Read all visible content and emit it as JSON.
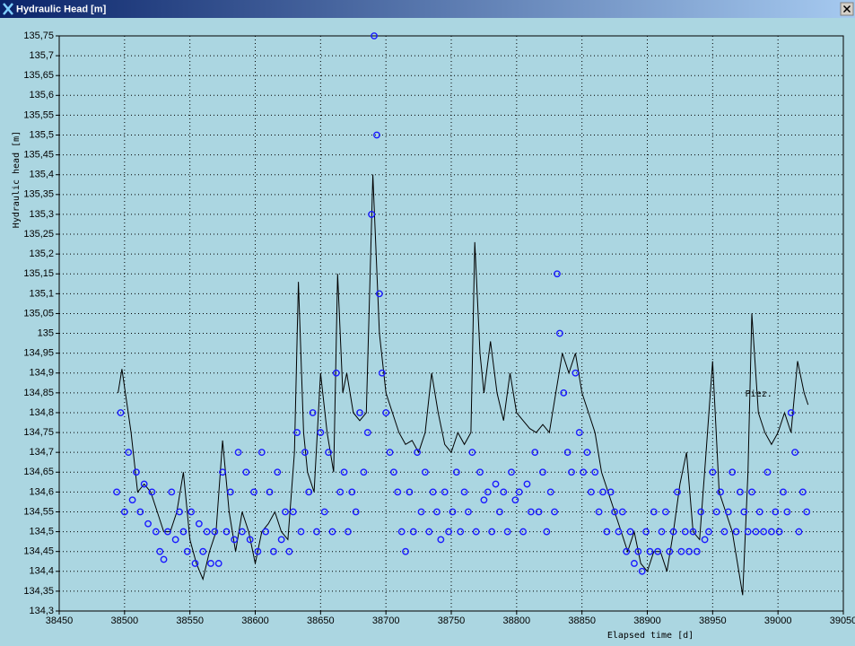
{
  "window": {
    "title": "Hydraulic Head [m]"
  },
  "chart_data": {
    "type": "line",
    "xlabel": "Elapsed time [d]",
    "ylabel": "Hydraulic head [m]",
    "xlim": [
      38450,
      39050
    ],
    "xticks": [
      38450,
      38500,
      38550,
      38600,
      38650,
      38700,
      38750,
      38800,
      38850,
      38900,
      38950,
      39000,
      39050
    ],
    "ylim": [
      134.3,
      135.75
    ],
    "yticks": [
      {
        "value": 134.3,
        "label": "134,3"
      },
      {
        "value": 134.35,
        "label": "134,35"
      },
      {
        "value": 134.4,
        "label": "134,4"
      },
      {
        "value": 134.45,
        "label": "134,45"
      },
      {
        "value": 134.5,
        "label": "134,5"
      },
      {
        "value": 134.55,
        "label": "134,55"
      },
      {
        "value": 134.6,
        "label": "134,6"
      },
      {
        "value": 134.65,
        "label": "134,65"
      },
      {
        "value": 134.7,
        "label": "134,7"
      },
      {
        "value": 134.75,
        "label": "134,75"
      },
      {
        "value": 134.8,
        "label": "134,8"
      },
      {
        "value": 134.85,
        "label": "134,85"
      },
      {
        "value": 134.9,
        "label": "134,9"
      },
      {
        "value": 134.95,
        "label": "134,95"
      },
      135,
      {
        "value": 135.05,
        "label": "135,05"
      },
      {
        "value": 135.1,
        "label": "135,1"
      },
      {
        "value": 135.15,
        "label": "135,15"
      },
      {
        "value": 135.2,
        "label": "135,2"
      },
      {
        "value": 135.25,
        "label": "135,25"
      },
      {
        "value": 135.3,
        "label": "135,3"
      },
      {
        "value": 135.35,
        "label": "135,35"
      },
      {
        "value": 135.4,
        "label": "135,4"
      },
      {
        "value": 135.45,
        "label": "135,45"
      },
      {
        "value": 135.5,
        "label": "135,5"
      },
      {
        "value": 135.55,
        "label": "135,55"
      },
      {
        "value": 135.6,
        "label": "135,6"
      },
      {
        "value": 135.65,
        "label": "135,65"
      },
      {
        "value": 135.7,
        "label": "135,7"
      },
      {
        "value": 135.75,
        "label": "135,75"
      }
    ],
    "grid": true,
    "series": [
      {
        "name": "Piez.",
        "type": "line",
        "color": "#000000",
        "x": [
          38495,
          38498,
          38505,
          38510,
          38515,
          38520,
          38525,
          38530,
          38535,
          38540,
          38545,
          38550,
          38555,
          38560,
          38565,
          38570,
          38575,
          38580,
          38585,
          38590,
          38595,
          38600,
          38605,
          38610,
          38615,
          38620,
          38625,
          38630,
          38633,
          38637,
          38640,
          38645,
          38650,
          38655,
          38660,
          38663,
          38667,
          38670,
          38675,
          38680,
          38685,
          38690,
          38695,
          38700,
          38705,
          38710,
          38715,
          38720,
          38725,
          38730,
          38735,
          38740,
          38745,
          38750,
          38755,
          38760,
          38765,
          38768,
          38772,
          38775,
          38780,
          38785,
          38790,
          38795,
          38800,
          38805,
          38810,
          38815,
          38820,
          38825,
          38830,
          38835,
          38840,
          38845,
          38850,
          38855,
          38860,
          38865,
          38870,
          38875,
          38880,
          38885,
          38890,
          38895,
          38900,
          38905,
          38910,
          38915,
          38920,
          38925,
          38930,
          38935,
          38940,
          38945,
          38950,
          38955,
          38960,
          38965,
          38970,
          38973,
          38977,
          38980,
          38985,
          38990,
          38995,
          39000,
          39005,
          39010,
          39015,
          39020,
          39023
        ],
        "values": [
          134.85,
          134.91,
          134.75,
          134.6,
          134.62,
          134.6,
          134.55,
          134.5,
          134.5,
          134.55,
          134.65,
          134.48,
          134.42,
          134.38,
          134.45,
          134.5,
          134.73,
          134.55,
          134.45,
          134.55,
          134.5,
          134.42,
          134.5,
          134.52,
          134.55,
          134.5,
          134.48,
          134.7,
          135.13,
          134.75,
          134.65,
          134.6,
          134.9,
          134.75,
          134.65,
          135.15,
          134.85,
          134.9,
          134.8,
          134.78,
          134.8,
          135.4,
          135.0,
          134.85,
          134.8,
          134.75,
          134.72,
          134.73,
          134.7,
          134.75,
          134.9,
          134.8,
          134.72,
          134.7,
          134.75,
          134.72,
          134.75,
          135.23,
          134.95,
          134.85,
          134.98,
          134.85,
          134.78,
          134.9,
          134.8,
          134.78,
          134.76,
          134.75,
          134.77,
          134.75,
          134.85,
          134.95,
          134.9,
          134.95,
          134.85,
          134.8,
          134.75,
          134.65,
          134.6,
          134.55,
          134.5,
          134.45,
          134.5,
          134.42,
          134.4,
          134.45,
          134.45,
          134.4,
          134.5,
          134.62,
          134.7,
          134.5,
          134.48,
          134.7,
          134.93,
          134.6,
          134.55,
          134.5,
          134.4,
          134.34,
          134.65,
          135.05,
          134.8,
          134.75,
          134.72,
          134.75,
          134.8,
          134.75,
          134.93,
          134.85,
          134.82
        ]
      },
      {
        "type": "scatter",
        "color": "#1a1aff",
        "x": [
          38494,
          38497,
          38500,
          38503,
          38506,
          38509,
          38512,
          38515,
          38518,
          38521,
          38524,
          38527,
          38530,
          38533,
          38536,
          38539,
          38542,
          38545,
          38548,
          38551,
          38554,
          38557,
          38560,
          38563,
          38566,
          38569,
          38572,
          38575,
          38578,
          38581,
          38584,
          38587,
          38590,
          38593,
          38596,
          38599,
          38602,
          38605,
          38608,
          38611,
          38614,
          38617,
          38620,
          38623,
          38626,
          38629,
          38632,
          38635,
          38638,
          38641,
          38644,
          38647,
          38650,
          38653,
          38656,
          38659,
          38662,
          38665,
          38668,
          38671,
          38674,
          38677,
          38680,
          38683,
          38686,
          38689,
          38691,
          38693,
          38695,
          38697,
          38700,
          38703,
          38706,
          38709,
          38712,
          38715,
          38718,
          38721,
          38724,
          38727,
          38730,
          38733,
          38736,
          38739,
          38742,
          38745,
          38748,
          38751,
          38754,
          38757,
          38760,
          38763,
          38766,
          38769,
          38772,
          38775,
          38778,
          38781,
          38784,
          38787,
          38790,
          38793,
          38796,
          38799,
          38802,
          38805,
          38808,
          38811,
          38814,
          38817,
          38820,
          38823,
          38826,
          38829,
          38831,
          38833,
          38836,
          38839,
          38842,
          38845,
          38848,
          38851,
          38854,
          38857,
          38860,
          38863,
          38866,
          38869,
          38872,
          38875,
          38878,
          38881,
          38884,
          38887,
          38890,
          38893,
          38896,
          38899,
          38902,
          38905,
          38908,
          38911,
          38914,
          38917,
          38920,
          38923,
          38926,
          38929,
          38932,
          38935,
          38938,
          38941,
          38944,
          38947,
          38950,
          38953,
          38956,
          38959,
          38962,
          38965,
          38968,
          38971,
          38974,
          38977,
          38980,
          38983,
          38986,
          38989,
          38992,
          38995,
          38998,
          39001,
          39004,
          39007,
          39010,
          39013,
          39016,
          39019,
          39022
        ],
        "values": [
          134.6,
          134.8,
          134.55,
          134.7,
          134.58,
          134.65,
          134.55,
          134.62,
          134.52,
          134.6,
          134.5,
          134.45,
          134.43,
          134.5,
          134.6,
          134.48,
          134.55,
          134.5,
          134.45,
          134.55,
          134.42,
          134.52,
          134.45,
          134.5,
          134.42,
          134.5,
          134.42,
          134.65,
          134.5,
          134.6,
          134.48,
          134.7,
          134.5,
          134.65,
          134.48,
          134.6,
          134.45,
          134.7,
          134.5,
          134.6,
          134.45,
          134.65,
          134.48,
          134.55,
          134.45,
          134.55,
          134.75,
          134.5,
          134.7,
          134.6,
          134.8,
          134.5,
          134.75,
          134.55,
          134.7,
          134.5,
          134.9,
          134.6,
          134.65,
          134.5,
          134.6,
          134.55,
          134.8,
          134.65,
          134.75,
          135.3,
          135.75,
          135.5,
          135.1,
          134.9,
          134.8,
          134.7,
          134.65,
          134.6,
          134.5,
          134.45,
          134.6,
          134.5,
          134.7,
          134.55,
          134.65,
          134.5,
          134.6,
          134.55,
          134.48,
          134.6,
          134.5,
          134.55,
          134.65,
          134.5,
          134.6,
          134.55,
          134.7,
          134.5,
          134.65,
          134.58,
          134.6,
          134.5,
          134.62,
          134.55,
          134.6,
          134.5,
          134.65,
          134.58,
          134.6,
          134.5,
          134.62,
          134.55,
          134.7,
          134.55,
          134.65,
          134.5,
          134.6,
          134.55,
          135.15,
          135.0,
          134.85,
          134.7,
          134.65,
          134.9,
          134.75,
          134.65,
          134.7,
          134.6,
          134.65,
          134.55,
          134.6,
          134.5,
          134.6,
          134.55,
          134.5,
          134.55,
          134.45,
          134.5,
          134.42,
          134.45,
          134.4,
          134.5,
          134.45,
          134.55,
          134.45,
          134.5,
          134.55,
          134.45,
          134.5,
          134.6,
          134.45,
          134.5,
          134.45,
          134.5,
          134.45,
          134.55,
          134.48,
          134.5,
          134.65,
          134.55,
          134.6,
          134.5,
          134.55,
          134.65,
          134.5,
          134.6,
          134.55,
          134.5,
          134.6,
          134.5,
          134.55,
          134.5,
          134.65,
          134.5,
          134.55,
          134.5,
          134.6,
          134.55,
          134.8,
          134.7,
          134.5,
          134.6,
          134.55
        ]
      }
    ]
  }
}
